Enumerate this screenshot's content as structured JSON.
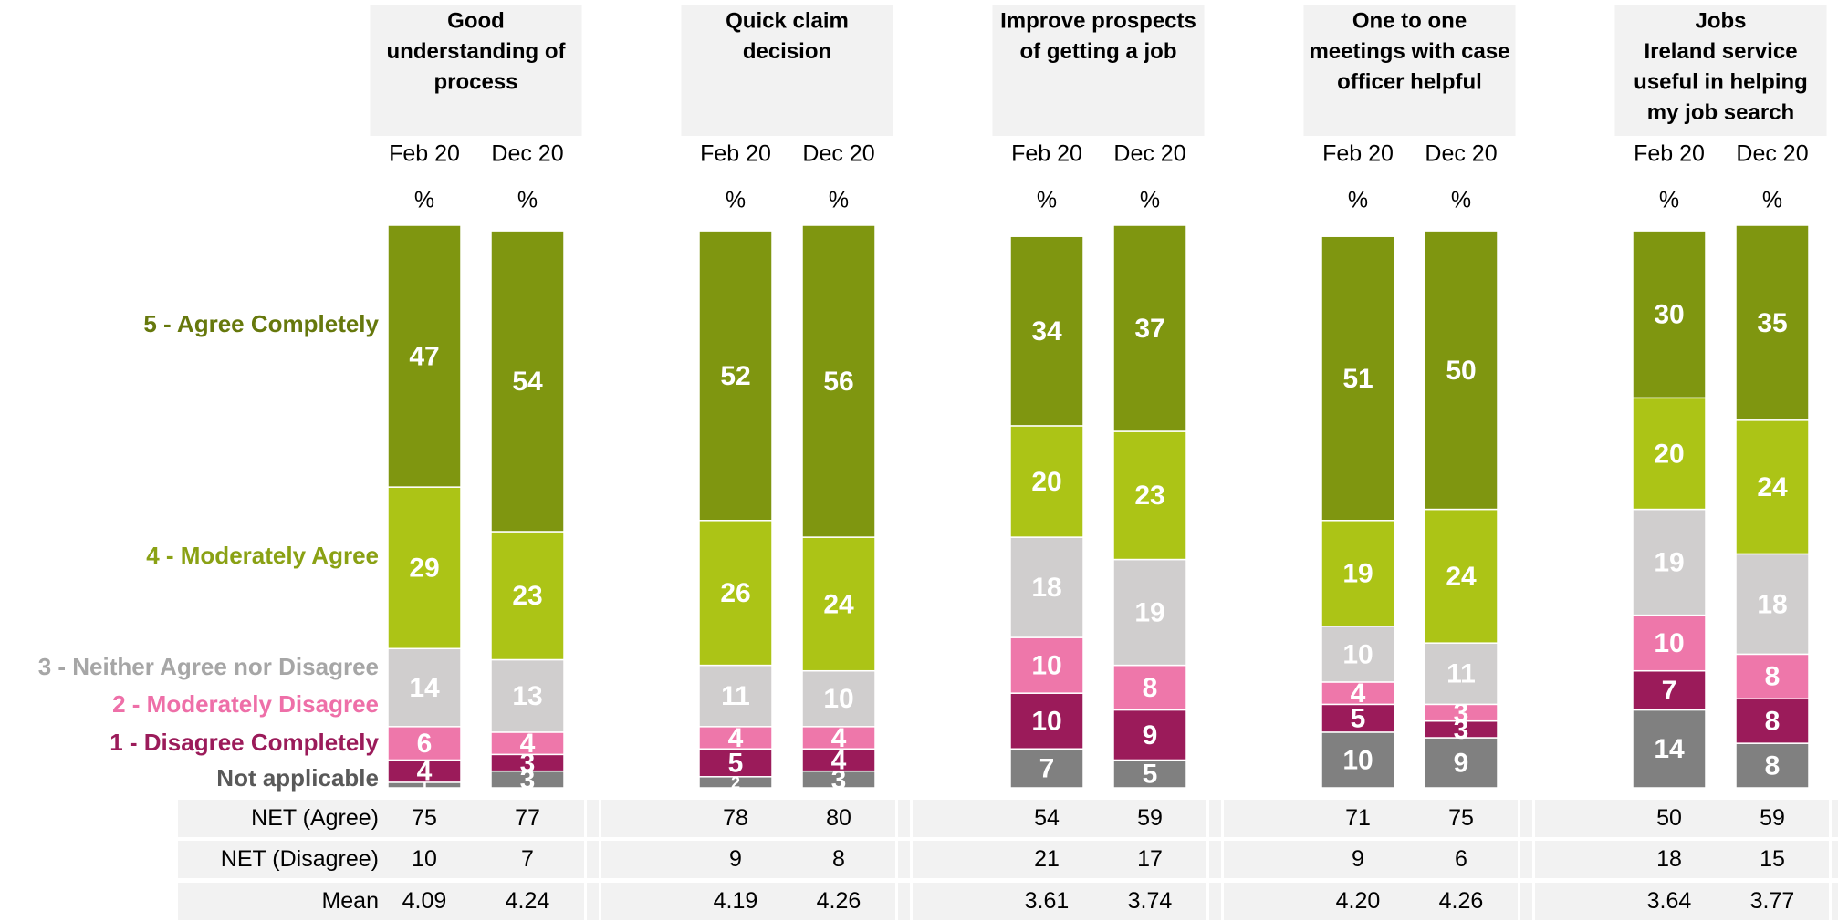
{
  "chart_data": {
    "type": "stacked_bar",
    "groups": [
      {
        "title": [
          "Good",
          "understanding of",
          "process"
        ]
      },
      {
        "title": [
          "Quick claim",
          "decision"
        ]
      },
      {
        "title": [
          "Improve prospects",
          "of getting a job"
        ]
      },
      {
        "title": [
          "One to one",
          "meetings with case",
          "officer helpful"
        ]
      },
      {
        "title": [
          "Jobs",
          "Ireland service",
          "useful in  helping",
          "my job search"
        ]
      }
    ],
    "categories": [
      "Feb 20",
      "Dec 20",
      "Feb 20",
      "Dec 20",
      "Feb 20",
      "Dec 20",
      "Feb 20",
      "Dec 20",
      "Feb 20",
      "Dec 20"
    ],
    "unit": "%",
    "ylim": [
      0,
      101
    ],
    "series": [
      {
        "name": "Not applicable",
        "color": "#808080",
        "label_color": "#595959",
        "values": [
          1,
          3,
          2,
          3,
          7,
          5,
          10,
          9,
          14,
          8
        ]
      },
      {
        "name": "1 - Disagree Completely",
        "color": "#9b1b5a",
        "label_color": "#9b1b5a",
        "values": [
          4,
          3,
          5,
          4,
          10,
          9,
          5,
          3,
          7,
          8
        ]
      },
      {
        "name": "2 - Moderately Disagree",
        "color": "#ee77aa",
        "label_color": "#ee6fa8",
        "values": [
          6,
          4,
          4,
          4,
          10,
          8,
          4,
          3,
          10,
          8
        ]
      },
      {
        "name": "3 - Neither Agree nor Disagree",
        "color": "#d0cece",
        "label_color": "#a6a6a6",
        "values": [
          14,
          13,
          11,
          10,
          18,
          19,
          10,
          11,
          19,
          18
        ]
      },
      {
        "name": "4 - Moderately Agree",
        "color": "#acc416",
        "label_color": "#8aa114",
        "values": [
          29,
          23,
          26,
          24,
          20,
          23,
          19,
          24,
          20,
          24
        ]
      },
      {
        "name": "5 - Agree Completely",
        "color": "#7f9610",
        "label_color": "#66780c",
        "values": [
          47,
          54,
          52,
          56,
          34,
          37,
          51,
          50,
          30,
          35
        ]
      }
    ],
    "table": {
      "rows": [
        {
          "label": "NET (Agree)",
          "values": [
            75,
            77,
            78,
            80,
            54,
            59,
            71,
            75,
            50,
            59
          ]
        },
        {
          "label": "NET (Disagree)",
          "values": [
            10,
            7,
            9,
            8,
            21,
            17,
            9,
            6,
            18,
            15
          ]
        },
        {
          "label": "Mean",
          "values": [
            "4.09",
            "4.24",
            "4.19",
            "4.26",
            "3.61",
            "3.74",
            "4.20",
            "4.26",
            "3.64",
            "3.77"
          ]
        }
      ]
    }
  }
}
